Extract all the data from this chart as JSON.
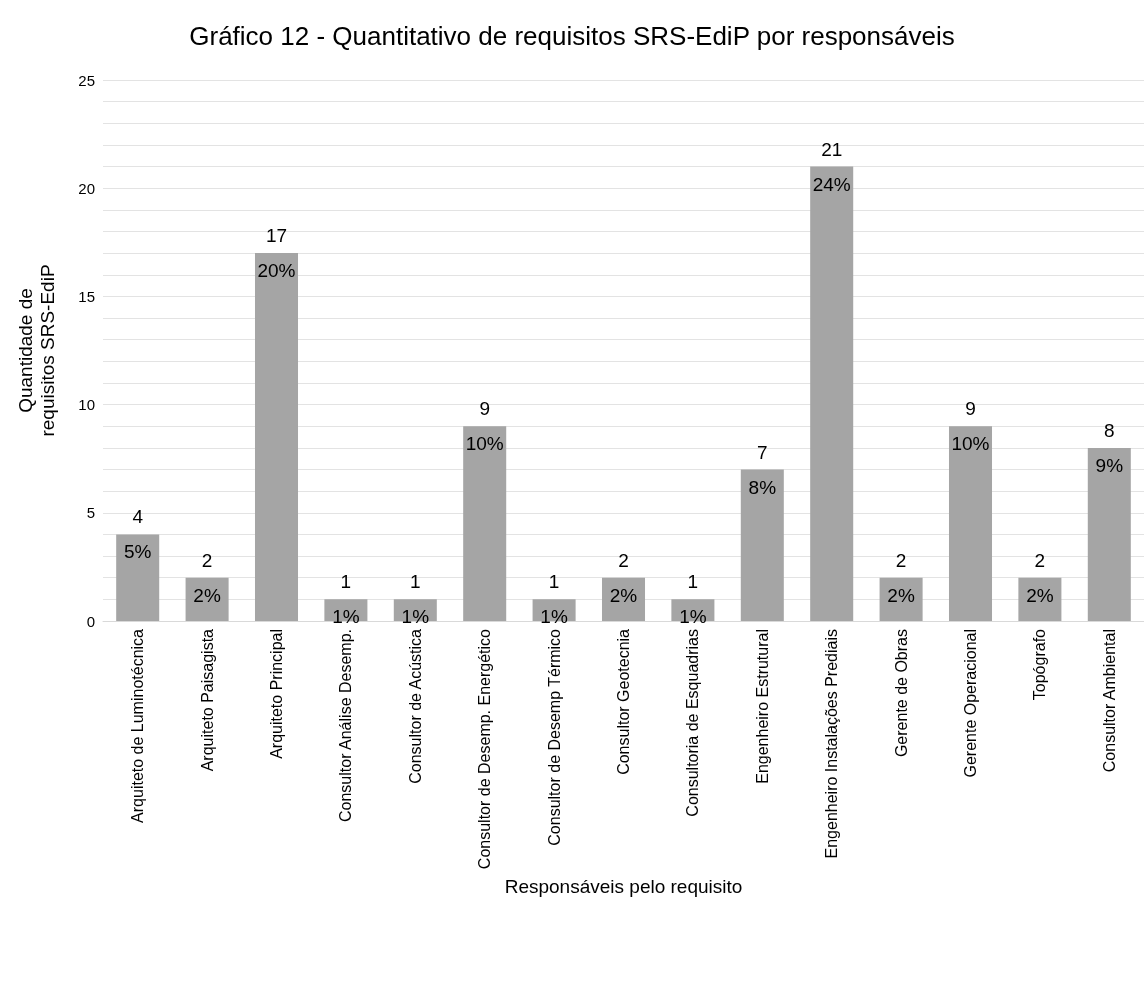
{
  "chart_data": {
    "type": "bar",
    "title": "Gráfico 12 - Quantitativo de requisitos SRS-EdiP por responsáveis",
    "xlabel": "Responsáveis pelo requisito",
    "ylabel": "Quantidade de\nrequisitos SRS-EdiP",
    "categories": [
      "Arquiteto de Luminotécnica",
      "Arquiteto Paisagista",
      "Arquiteto Principal",
      "Consultor Análise Desemp.",
      "Consultor de Acústica",
      "Consultor de Desemp. Energético",
      "Consultor de Desemp Térmico",
      "Consultor Geotecnia",
      "Consultoria de Esquadrias",
      "Engenheiro Estrutural",
      "Engenheiro Instalações Prediais",
      "Gerente de Obras",
      "Gerente Operacional",
      "Topógrafo",
      "Consultor Ambiental"
    ],
    "values": [
      4,
      2,
      17,
      1,
      1,
      9,
      1,
      2,
      1,
      7,
      21,
      2,
      9,
      2,
      8
    ],
    "annotations": [
      {
        "text": "5%",
        "x": "Arquiteto de Luminotécnica",
        "y": 4
      },
      {
        "text": "2%",
        "x": "Arquiteto Paisagista",
        "y": 2
      },
      {
        "text": "20%",
        "x": "Arquiteto Principal",
        "y": 17
      },
      {
        "text": "1%",
        "x": "Consultor Análise Desemp.",
        "y": 1
      },
      {
        "text": "1%",
        "x": "Consultor de Acústica",
        "y": 1
      },
      {
        "text": "10%",
        "x": "Consultor de Desemp. Energético",
        "y": 9
      },
      {
        "text": "1%",
        "x": "Consultor de Desemp Térmico",
        "y": 1
      },
      {
        "text": "2%",
        "x": "Consultor Geotecnia",
        "y": 2
      },
      {
        "text": "1%",
        "x": "Consultoria de Esquadrias",
        "y": 1
      },
      {
        "text": "8%",
        "x": "Engenheiro Estrutural",
        "y": 7
      },
      {
        "text": "24%",
        "x": "Engenheiro Instalações Prediais",
        "y": 21
      },
      {
        "text": "2%",
        "x": "Gerente de Obras",
        "y": 2
      },
      {
        "text": "10%",
        "x": "Gerente Operacional",
        "y": 9
      },
      {
        "text": "2%",
        "x": "Topógrafo",
        "y": 2
      },
      {
        "text": "9%",
        "x": "Consultor Ambiental",
        "y": 8
      }
    ],
    "data_labels": true,
    "color": "#a5a5a5",
    "ylim": [
      0,
      25
    ],
    "yticks": [
      0,
      {
        "value": 1,
        "label": null
      },
      {
        "value": 2,
        "label": null
      },
      {
        "value": 3,
        "label": null
      },
      {
        "value": 4,
        "label": null
      },
      5,
      {
        "value": 6,
        "label": null
      },
      {
        "value": 7,
        "label": null
      },
      {
        "value": 8,
        "label": null
      },
      {
        "value": 9,
        "label": null
      },
      10,
      {
        "value": 11,
        "label": null
      },
      {
        "value": 12,
        "label": null
      },
      {
        "value": 13,
        "label": null
      },
      {
        "value": 14,
        "label": null
      },
      15,
      {
        "value": 16,
        "label": null
      },
      {
        "value": 17,
        "label": null
      },
      {
        "value": 18,
        "label": null
      },
      {
        "value": 19,
        "label": null
      },
      20,
      {
        "value": 21,
        "label": null
      },
      {
        "value": 22,
        "label": null
      },
      {
        "value": 23,
        "label": null
      },
      {
        "value": 24,
        "label": null
      },
      25
    ],
    "grid": true
  }
}
